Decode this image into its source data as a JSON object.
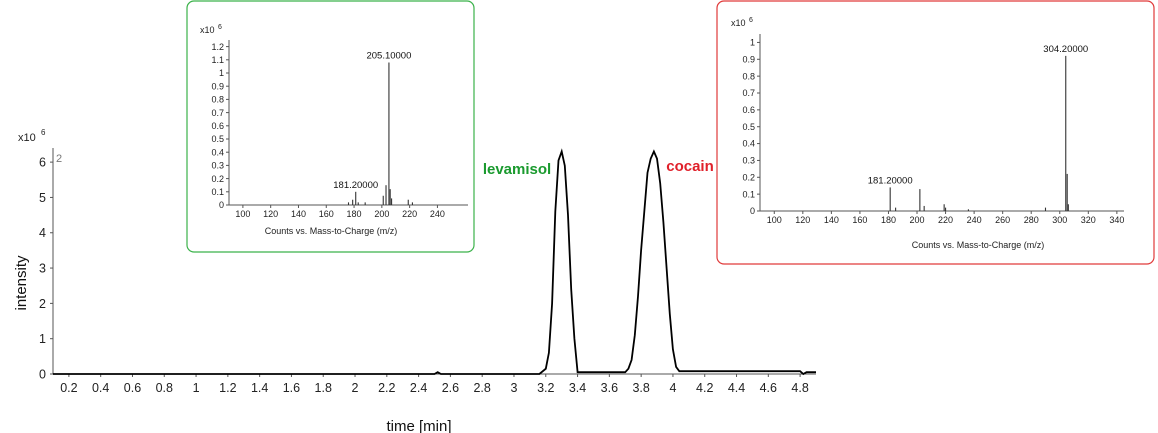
{
  "chart_data": [
    {
      "type": "line",
      "title": "",
      "xlabel": "time [min]",
      "ylabel": "intensity",
      "y_multiplier": "x10",
      "y_exponent": "6",
      "panel_index": "2",
      "xlim": [
        0.1,
        4.9
      ],
      "ylim": [
        0,
        6.4
      ],
      "x_ticks": [
        "0.2",
        "0.4",
        "0.6",
        "0.8",
        "1",
        "1.2",
        "1.4",
        "1.6",
        "1.8",
        "2",
        "2.2",
        "2.4",
        "2.6",
        "2.8",
        "3",
        "3.2",
        "3.4",
        "3.6",
        "3.8",
        "4",
        "4.2",
        "4.4",
        "4.6",
        "4.8"
      ],
      "y_ticks": [
        "0",
        "1",
        "2",
        "3",
        "4",
        "5",
        "6"
      ],
      "series": [
        {
          "x": [
            0.0,
            2.5,
            2.52,
            2.54,
            3.16,
            3.2,
            3.22,
            3.24,
            3.26,
            3.28,
            3.3,
            3.32,
            3.34,
            3.36,
            3.38,
            3.4,
            3.6,
            3.7,
            3.72,
            3.74,
            3.76,
            3.78,
            3.8,
            3.82,
            3.84,
            3.86,
            3.88,
            3.9,
            3.92,
            3.94,
            3.96,
            3.98,
            4.0,
            4.02,
            4.04,
            4.8,
            4.82,
            4.84,
            4.9
          ],
          "y": [
            0.0,
            0.0,
            0.05,
            0.0,
            0.0,
            0.15,
            0.6,
            2.0,
            4.6,
            6.05,
            6.3,
            5.9,
            4.5,
            2.4,
            1.0,
            0.05,
            0.05,
            0.05,
            0.15,
            0.4,
            1.1,
            2.2,
            3.5,
            4.6,
            5.7,
            6.1,
            6.3,
            6.1,
            5.4,
            4.3,
            3.0,
            1.7,
            0.7,
            0.2,
            0.08,
            0.08,
            0.0,
            0.05,
            0.05
          ]
        }
      ],
      "annotations": [
        {
          "text": "levamisol",
          "x": 3.05,
          "y": 6.0,
          "color": "#1a9a2e"
        },
        {
          "text": "cocain",
          "x": 4.15,
          "y": 6.0,
          "color": "#e0202a"
        }
      ],
      "line_color": "#000000"
    },
    {
      "type": "bar",
      "title": "",
      "xlabel": "Counts vs. Mass-to-Charge (m/z)",
      "ylabel": "",
      "y_multiplier": "x10",
      "y_exponent": "6",
      "xlim": [
        90,
        262
      ],
      "ylim": [
        0,
        1.25
      ],
      "x_ticks": [
        "100",
        "120",
        "140",
        "160",
        "180",
        "200",
        "220",
        "240"
      ],
      "y_ticks": [
        "0",
        "0.1",
        "0.2",
        "0.3",
        "0.4",
        "0.5",
        "0.6",
        "0.7",
        "0.8",
        "0.9",
        "1",
        "1.1",
        "1.2"
      ],
      "x": [
        176,
        179,
        181.2,
        183,
        188,
        201,
        203,
        205.1,
        206,
        207,
        219,
        222
      ],
      "values": [
        0.02,
        0.04,
        0.1,
        0.02,
        0.02,
        0.07,
        0.15,
        1.08,
        0.12,
        0.05,
        0.04,
        0.02
      ],
      "annotations": [
        {
          "text": "205.10000",
          "x": 205.1,
          "y": 1.08
        },
        {
          "text": "181.20000",
          "x": 181.2,
          "y": 0.1
        }
      ],
      "border_color": "#3bb24a"
    },
    {
      "type": "bar",
      "title": "",
      "xlabel": "Counts vs. Mass-to-Charge (m/z)",
      "ylabel": "",
      "y_multiplier": "x10",
      "y_exponent": "6",
      "xlim": [
        90,
        345
      ],
      "ylim": [
        0,
        1.05
      ],
      "x_ticks": [
        "100",
        "120",
        "140",
        "160",
        "180",
        "200",
        "220",
        "240",
        "260",
        "280",
        "300",
        "320",
        "340"
      ],
      "y_ticks": [
        "0",
        "0.1",
        "0.2",
        "0.3",
        "0.4",
        "0.5",
        "0.6",
        "0.7",
        "0.8",
        "0.9",
        "1"
      ],
      "x": [
        181.2,
        185,
        202,
        205,
        219,
        220,
        236,
        290,
        304.2,
        305.2,
        306
      ],
      "values": [
        0.14,
        0.02,
        0.13,
        0.03,
        0.04,
        0.02,
        0.01,
        0.02,
        0.92,
        0.22,
        0.04
      ],
      "annotations": [
        {
          "text": "304.20000",
          "x": 304.2,
          "y": 0.92
        },
        {
          "text": "181.20000",
          "x": 181.2,
          "y": 0.14
        }
      ],
      "border_color": "#e03a3a"
    }
  ]
}
